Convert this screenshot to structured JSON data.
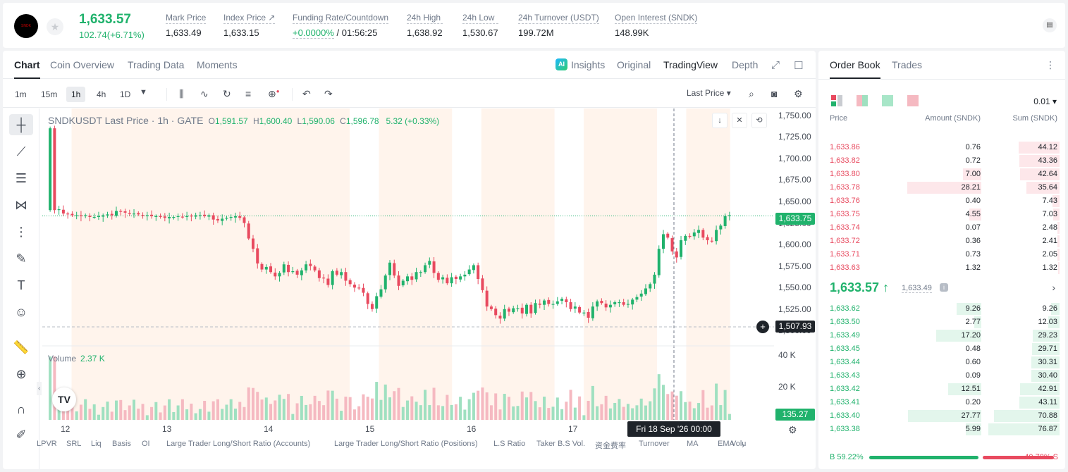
{
  "header": {
    "last_price": "1,633.57",
    "change": "102.74(+6.71%)",
    "stats": [
      {
        "label": "Mark Price",
        "value": "1,633.49"
      },
      {
        "label": "Index Price ↗",
        "value": "1,633.15"
      },
      {
        "label": "Funding Rate/Countdown",
        "value_green": "+0.0000%",
        "value": "/ 01:56:25"
      },
      {
        "label": "24h High",
        "value": "1,638.92"
      },
      {
        "label": "24h Low",
        "value": "1,530.67"
      },
      {
        "label": "24h Turnover (USDT)",
        "value": "199.72M"
      },
      {
        "label": "Open Interest (SNDK)",
        "value": "148.99K"
      }
    ]
  },
  "chart_tabs": [
    "Chart",
    "Coin Overview",
    "Trading Data",
    "Moments"
  ],
  "view_tabs": {
    "insights": "Insights",
    "original": "Original",
    "tradingview": "TradingView",
    "depth": "Depth",
    "ai": "AI"
  },
  "timeframes": [
    "1m",
    "15m",
    "1h",
    "4h",
    "1D"
  ],
  "price_type": "Last Price ▾",
  "legend": {
    "symbol": "SNDKUSDT Last Price · 1h · GATE",
    "o": "1,591.57",
    "h": "1,600.40",
    "l": "1,590.06",
    "c": "1,596.78",
    "chg": "5.32 (+0.33%)"
  },
  "volume": {
    "label": "Volume",
    "value": "2.37 K"
  },
  "price_tags": {
    "current": "1,633.75",
    "cursor": "1,507.93",
    "volume": "135.27"
  },
  "time_tag": "Fri 18 Sep '26   00:00",
  "indicators": [
    "LPVR",
    "SRL",
    "Liq",
    "Basis",
    "OI",
    "Large Trader Long/Short Ratio (Accounts)",
    "Large Trader Long/Short Ratio (Positions)",
    "L.S Ratio",
    "Taker B.S Vol.",
    "资金费率",
    "Turnover",
    "MA",
    "EMA",
    "Volu"
  ],
  "colors": {
    "up": "#20b26c",
    "down": "#e84a5f"
  },
  "chart_data": {
    "type": "candlestick",
    "symbol": "SNDKUSDT",
    "interval": "1h",
    "y_ticks": [
      "1,750.00",
      "1,725.00",
      "1,700.00",
      "1,675.00",
      "1,650.00",
      "1,625.00",
      "1,600.00",
      "1,575.00",
      "1,550.00",
      "1,525.00",
      "1,500.00"
    ],
    "ylim": [
      1488,
      1758
    ],
    "vol_ticks": [
      "40 K",
      "20 K"
    ],
    "x_labels": [
      "12",
      "13",
      "14",
      "15",
      "16",
      "17"
    ],
    "session_shading": [
      [
        0.04,
        0.42
      ],
      [
        0.46,
        0.56
      ],
      [
        0.6,
        0.7
      ],
      [
        0.74,
        0.84
      ],
      [
        0.88,
        0.94
      ]
    ],
    "closes": [
      1735,
      1640,
      1641,
      1636,
      1635,
      1634,
      1634,
      1633,
      1634,
      1632,
      1632,
      1633,
      1634,
      1635,
      1634,
      1639,
      1638,
      1637,
      1636,
      1636,
      1635,
      1634,
      1634,
      1633,
      1633,
      1632,
      1631,
      1632,
      1632,
      1633,
      1632,
      1633,
      1633,
      1634,
      1634,
      1633,
      1634,
      1629,
      1628,
      1630,
      1631,
      1632,
      1633,
      1631,
      1625,
      1607,
      1595,
      1578,
      1571,
      1574,
      1568,
      1563,
      1567,
      1577,
      1568,
      1569,
      1565,
      1570,
      1577,
      1575,
      1570,
      1561,
      1561,
      1553,
      1569,
      1565,
      1568,
      1558,
      1554,
      1550,
      1549,
      1544,
      1531,
      1525,
      1540,
      1548,
      1564,
      1579,
      1564,
      1552,
      1558,
      1563,
      1559,
      1568,
      1568,
      1576,
      1581,
      1567,
      1559,
      1562,
      1555,
      1562,
      1560,
      1563,
      1565,
      1571,
      1576,
      1560,
      1547,
      1528,
      1525,
      1518,
      1514,
      1525,
      1522,
      1526,
      1526,
      1520,
      1530,
      1520,
      1532,
      1530,
      1535,
      1531,
      1531,
      1534,
      1537,
      1533,
      1525,
      1528,
      1521,
      1521,
      1515,
      1528,
      1534,
      1532,
      1527,
      1530,
      1533,
      1533,
      1530,
      1531,
      1536,
      1539,
      1543,
      1549,
      1554,
      1565,
      1595,
      1612,
      1608,
      1592,
      1585,
      1605,
      1610,
      1609,
      1614,
      1617,
      1608,
      1605,
      1604,
      1617,
      1622,
      1633,
      1634
    ]
  },
  "orderbook": {
    "tabs": [
      "Order Book",
      "Trades"
    ],
    "precision": "0.01 ▾",
    "headers": {
      "price": "Price",
      "amount": "Amount (SNDK)",
      "sum": "Sum (SNDK)"
    },
    "asks": [
      {
        "price": "1,633.86",
        "amount": "0.76",
        "sum": "44.12"
      },
      {
        "price": "1,633.82",
        "amount": "0.72",
        "sum": "43.36"
      },
      {
        "price": "1,633.80",
        "amount": "7.00",
        "sum": "42.64"
      },
      {
        "price": "1,633.78",
        "amount": "28.21",
        "sum": "35.64"
      },
      {
        "price": "1,633.76",
        "amount": "0.40",
        "sum": "7.43"
      },
      {
        "price": "1,633.75",
        "amount": "4.55",
        "sum": "7.03"
      },
      {
        "price": "1,633.74",
        "amount": "0.07",
        "sum": "2.48"
      },
      {
        "price": "1,633.72",
        "amount": "0.36",
        "sum": "2.41"
      },
      {
        "price": "1,633.71",
        "amount": "0.73",
        "sum": "2.05"
      },
      {
        "price": "1,633.63",
        "amount": "1.32",
        "sum": "1.32"
      }
    ],
    "mid": {
      "price": "1,633.57 ↑",
      "mark": "1,633.49"
    },
    "bids": [
      {
        "price": "1,633.62",
        "amount": "9.26",
        "sum": "9.26"
      },
      {
        "price": "1,633.50",
        "amount": "2.77",
        "sum": "12.03"
      },
      {
        "price": "1,633.49",
        "amount": "17.20",
        "sum": "29.23"
      },
      {
        "price": "1,633.45",
        "amount": "0.48",
        "sum": "29.71"
      },
      {
        "price": "1,633.44",
        "amount": "0.60",
        "sum": "30.31"
      },
      {
        "price": "1,633.43",
        "amount": "0.09",
        "sum": "30.40"
      },
      {
        "price": "1,633.42",
        "amount": "12.51",
        "sum": "42.91"
      },
      {
        "price": "1,633.41",
        "amount": "0.20",
        "sum": "43.11"
      },
      {
        "price": "1,633.40",
        "amount": "27.77",
        "sum": "70.88"
      },
      {
        "price": "1,633.38",
        "amount": "5.99",
        "sum": "76.87"
      }
    ],
    "buy_ratio": "B 59.22%",
    "sell_ratio": "40.78% S",
    "buy_fraction": 0.5922
  }
}
